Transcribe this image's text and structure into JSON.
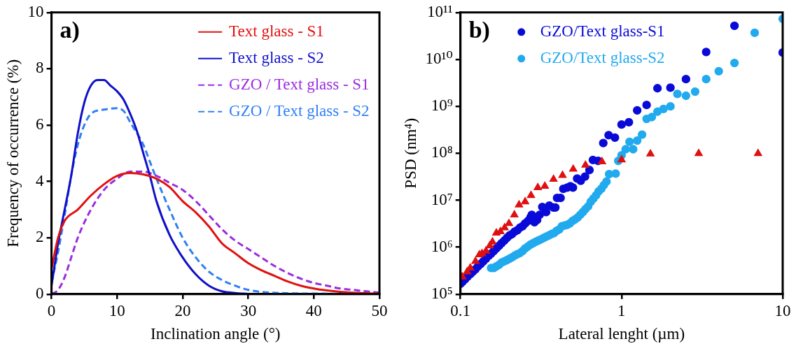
{
  "chart_data": [
    {
      "type": "line",
      "xlabel": "Inclination angle (°)",
      "ylabel": "Frequency of occurrence (%)",
      "annotations": [
        "a)"
      ],
      "xlim": [
        0,
        50
      ],
      "xticks": [
        0,
        10,
        20,
        30,
        40,
        50
      ],
      "ylim": [
        0,
        10
      ],
      "yticks": [
        0,
        2,
        4,
        6,
        8,
        10
      ],
      "grid": false,
      "legend": "top right",
      "marker": "none",
      "series": [
        {
          "name": "Text glass - S1",
          "color": "#e01010",
          "line_style": "solid",
          "x": [
            0,
            1,
            2,
            4,
            6,
            8,
            10,
            12,
            14,
            16,
            18,
            20,
            22,
            24,
            26,
            28,
            30,
            32,
            34,
            36,
            38,
            40,
            42,
            44,
            46,
            48,
            50
          ],
          "values": [
            0.9,
            2.0,
            2.6,
            3.0,
            3.5,
            3.9,
            4.2,
            4.3,
            4.25,
            4.1,
            3.8,
            3.3,
            2.9,
            2.4,
            1.8,
            1.45,
            1.1,
            0.85,
            0.65,
            0.45,
            0.3,
            0.2,
            0.13,
            0.08,
            0.05,
            0.03,
            0.02
          ]
        },
        {
          "name": "Text glass - S2",
          "color": "#1010c8",
          "line_style": "solid",
          "x": [
            0,
            1,
            2,
            3,
            4,
            5,
            6,
            7,
            8,
            9,
            10,
            11,
            12,
            13,
            14,
            15,
            16,
            18,
            20,
            22,
            24,
            26,
            28,
            30
          ],
          "values": [
            0.3,
            1.8,
            3.0,
            4.2,
            5.7,
            6.8,
            7.4,
            7.6,
            7.6,
            7.4,
            7.2,
            6.9,
            6.4,
            5.8,
            5.0,
            4.2,
            3.3,
            2.1,
            1.3,
            0.7,
            0.3,
            0.1,
            0.04,
            0.01
          ]
        },
        {
          "name": "GZO / Text glass - S1",
          "color": "#9a2be0",
          "line_style": "dashed",
          "x": [
            0,
            1,
            2,
            3,
            4,
            6,
            8,
            10,
            12,
            14,
            16,
            18,
            20,
            22,
            24,
            26,
            28,
            30,
            32,
            34,
            36,
            38,
            40,
            42,
            44,
            46,
            48,
            50
          ],
          "values": [
            0,
            0.15,
            0.6,
            1.3,
            2.0,
            3.0,
            3.7,
            4.1,
            4.35,
            4.35,
            4.2,
            3.95,
            3.7,
            3.3,
            2.8,
            2.3,
            1.9,
            1.6,
            1.3,
            1.0,
            0.75,
            0.55,
            0.4,
            0.3,
            0.2,
            0.15,
            0.1,
            0.05
          ]
        },
        {
          "name": "GZO / Text glass - S2",
          "color": "#2f7ff5",
          "line_style": "dashed",
          "x": [
            0,
            1,
            2,
            3,
            4,
            5,
            6,
            8,
            10,
            11,
            12,
            14,
            15,
            16,
            18,
            20,
            22,
            24,
            26,
            28,
            30,
            32,
            36,
            40,
            50
          ],
          "values": [
            0.4,
            1.5,
            2.8,
            4.2,
            5.3,
            6.0,
            6.4,
            6.55,
            6.6,
            6.5,
            6.1,
            5.3,
            4.7,
            4.1,
            3.0,
            2.0,
            1.3,
            0.8,
            0.5,
            0.3,
            0.15,
            0.08,
            0.03,
            0.02,
            0
          ]
        }
      ]
    },
    {
      "type": "scatter",
      "xlabel": "Lateral lenght (µm)",
      "ylabel": "PSD (nm⁴)",
      "annotations": [
        "b)"
      ],
      "log": "xy",
      "xlim": [
        0.1,
        10
      ],
      "xticks": [
        0.1,
        1,
        10
      ],
      "ylim": [
        100000,
        100000000000
      ],
      "yticks": [
        {
          "value": 100000,
          "label": "10⁵"
        },
        {
          "value": 1000000,
          "label": "10⁶"
        },
        {
          "value": 10000000,
          "label": "10⁷"
        },
        {
          "value": 100000000,
          "label": "10⁸"
        },
        {
          "value": 1000000000,
          "label": "10⁹"
        },
        {
          "value": 10000000000,
          "label": "10¹⁰"
        },
        {
          "value": 100000000000,
          "label": "10¹¹"
        }
      ],
      "grid": false,
      "legend": "top left",
      "series": [
        {
          "color": "#e01010",
          "marker": "triangle",
          "x": [
            0.1027,
            0.11,
            0.115,
            0.124,
            0.131,
            0.136,
            0.144,
            0.152,
            0.158,
            0.167,
            0.177,
            0.188,
            0.2,
            0.216,
            0.231,
            0.252,
            0.274,
            0.302,
            0.334,
            0.378,
            0.43,
            0.501,
            0.597,
            0.756,
            1.0,
            1.51,
            3.01,
            7.03
          ],
          "values": [
            234000,
            300000,
            360000,
            500000,
            690000,
            730000,
            830000,
            1070000,
            1300000,
            2000000,
            2150000,
            2600000,
            3200000,
            4900000,
            8000000,
            9300000,
            12700000,
            18600000,
            19900000,
            28000000,
            34000000,
            46000000,
            56000000,
            66000000,
            73000000,
            97000000,
            99000000,
            99000000
          ]
        },
        {
          "name": "GZO/Text glass-S1",
          "color": "#0a0ad8",
          "marker": "circle",
          "x": [
            0.1,
            0.1027,
            0.1066,
            0.1106,
            0.115,
            0.1193,
            0.124,
            0.1285,
            0.1335,
            0.1386,
            0.144,
            0.1493,
            0.155,
            0.161,
            0.167,
            0.1735,
            0.18,
            0.187,
            0.194,
            0.2015,
            0.209,
            0.217,
            0.2255,
            0.234,
            0.243,
            0.252,
            0.262,
            0.272,
            0.277,
            0.288,
            0.299,
            0.31,
            0.322,
            0.34,
            0.356,
            0.378,
            0.388,
            0.398,
            0.418,
            0.435,
            0.46,
            0.481,
            0.499,
            0.53,
            0.558,
            0.593,
            0.632,
            0.664,
            0.715,
            0.77,
            0.831,
            0.909,
            1.0,
            1.11,
            1.25,
            1.43,
            1.67,
            2.01,
            2.51,
            3.35,
            5.02,
            10
          ],
          "values": [
            166000,
            182000,
            206000,
            234000,
            266000,
            300000,
            340000,
            390000,
            440000,
            500000,
            570000,
            650000,
            730000,
            830000,
            940000,
            1070000,
            1220000,
            1380000,
            1570000,
            1780000,
            1900000,
            2150000,
            2300000,
            2600000,
            2800000,
            3200000,
            3600000,
            4300000,
            4900000,
            3400000,
            3800000,
            4900000,
            7200000,
            5600000,
            7700000,
            7000000,
            7000000,
            11200000,
            11200000,
            17500000,
            18600000,
            19900000,
            18600000,
            29000000,
            26000000,
            32000000,
            44000000,
            72000000,
            69000000,
            165000000,
            244000000,
            215000000,
            410000000,
            460000000,
            820000000,
            1070000000,
            2430000000,
            2500000000,
            3800000000,
            14400000000,
            52000000000,
            14000000000
          ]
        },
        {
          "name": "GZO/Text glass-S2",
          "color": "#22aaee",
          "marker": "circle",
          "x": [
            0.155,
            0.161,
            0.167,
            0.1735,
            0.18,
            0.187,
            0.194,
            0.2015,
            0.209,
            0.217,
            0.2255,
            0.234,
            0.243,
            0.252,
            0.262,
            0.272,
            0.282,
            0.293,
            0.304,
            0.316,
            0.328,
            0.34,
            0.353,
            0.367,
            0.381,
            0.396,
            0.411,
            0.426,
            0.443,
            0.46,
            0.477,
            0.495,
            0.514,
            0.534,
            0.554,
            0.575,
            0.597,
            0.62,
            0.644,
            0.668,
            0.694,
            0.72,
            0.748,
            0.776,
            0.806,
            0.837,
            0.919,
            0.954,
            1.0,
            1.06,
            1.12,
            1.18,
            1.25,
            1.34,
            1.43,
            1.54,
            1.67,
            1.82,
            2.01,
            2.22,
            2.51,
            2.86,
            3.35,
            4.01,
            5.02,
            6.7,
            10
          ],
          "values": [
            360000,
            360000,
            390000,
            420000,
            470000,
            500000,
            530000,
            570000,
            610000,
            660000,
            710000,
            750000,
            830000,
            940000,
            1030000,
            1140000,
            1220000,
            1300000,
            1380000,
            1470000,
            1570000,
            1670000,
            1780000,
            1900000,
            2000000,
            2240000,
            2400000,
            2800000,
            2900000,
            3000000,
            3200000,
            3600000,
            3900000,
            4300000,
            4900000,
            5600000,
            6500000,
            7400000,
            9300000,
            10800000,
            12700000,
            15400000,
            17500000,
            21000000,
            25000000,
            36000000,
            37000000,
            69000000,
            91000000,
            122000000,
            176000000,
            122000000,
            187000000,
            250000000,
            540000000,
            590000000,
            770000000,
            880000000,
            1000000000,
            1840000000,
            1680000000,
            2060000000,
            3800000000,
            5600000000,
            8400000000,
            37000000000,
            73000000000
          ]
        }
      ]
    }
  ]
}
